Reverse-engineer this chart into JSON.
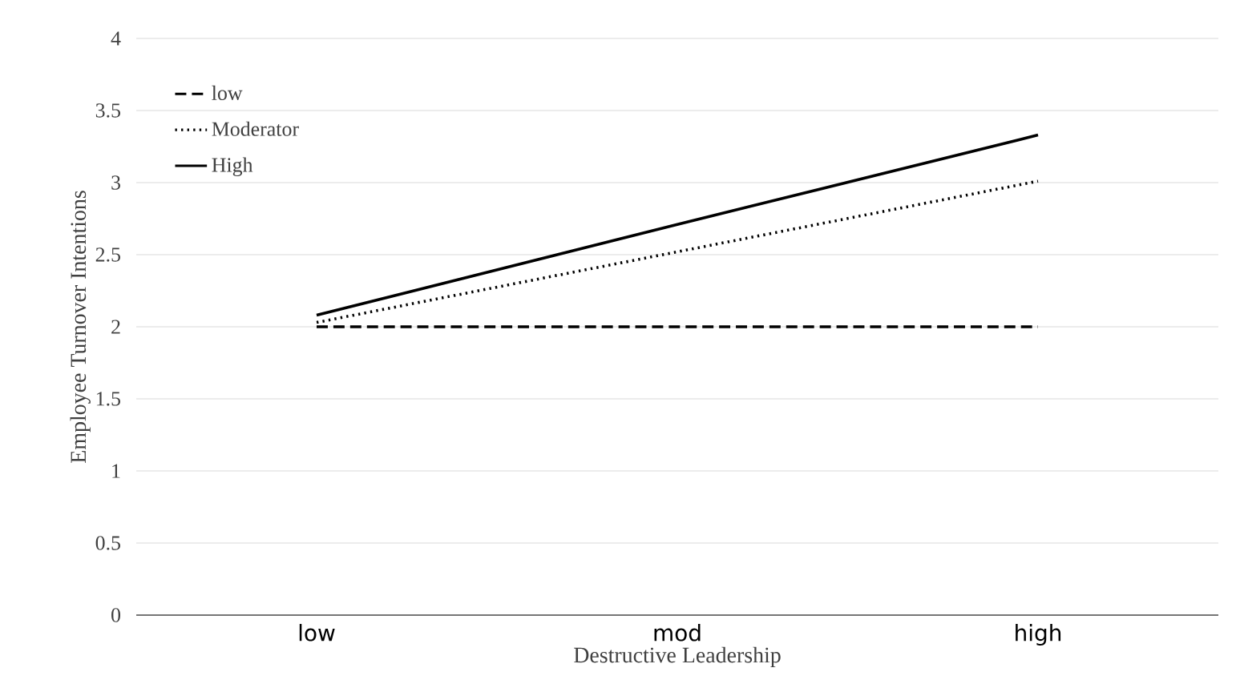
{
  "chart_data": {
    "type": "line",
    "xlabel": "Destructive Leadership",
    "ylabel": "Employee Turnover Intentions",
    "categories": [
      "low",
      "mod",
      "high"
    ],
    "series": [
      {
        "name": "low",
        "color": "#000000",
        "line_style": "dashed",
        "values": [
          2,
          2,
          2
        ]
      },
      {
        "name": "Moderator",
        "color": "#000000",
        "line_style": "dotted",
        "values": [
          2.03,
          2.52,
          3.01
        ]
      },
      {
        "name": "High",
        "color": "#000000",
        "line_style": "solid",
        "values": [
          2.08,
          2.71,
          3.33
        ]
      }
    ],
    "ylim": [
      0,
      4
    ],
    "yticks": [
      0,
      0.5,
      1,
      1.5,
      2,
      2.5,
      3,
      3.5,
      4
    ],
    "grid": "y",
    "legend": "top left",
    "marker": "none"
  }
}
